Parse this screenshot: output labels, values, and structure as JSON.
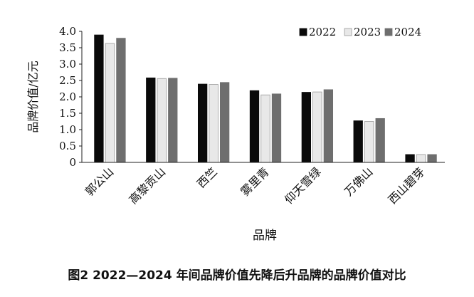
{
  "caption": "图2 2022—2024 年间品牌价值先降后升品牌的品牌价值对比",
  "chart_data": {
    "type": "bar",
    "categories": [
      "郭公山",
      "高黎贡山",
      "西竺",
      "雾里青",
      "仰天雪绿",
      "万佛山",
      "西山碧芽"
    ],
    "series": [
      {
        "name": "2022",
        "values": [
          3.89,
          2.58,
          2.39,
          2.19,
          2.14,
          1.27,
          0.24
        ]
      },
      {
        "name": "2023",
        "values": [
          3.63,
          2.56,
          2.38,
          2.06,
          2.15,
          1.25,
          0.24
        ]
      },
      {
        "name": "2024",
        "values": [
          3.79,
          2.57,
          2.44,
          2.09,
          2.22,
          1.34,
          0.24
        ]
      }
    ],
    "colors": [
      "#0a0a0a",
      "#e8e8e8",
      "#6e6e6e"
    ],
    "xlabel": "品牌",
    "ylabel": "品牌价值/亿元",
    "ylim": [
      0,
      4.0
    ],
    "yticks": [
      "0",
      "0.5",
      "1.0",
      "1.5",
      "2.0",
      "2.5",
      "3.0",
      "3.5",
      "4.0"
    ],
    "grid": false,
    "legend": "top-right"
  }
}
